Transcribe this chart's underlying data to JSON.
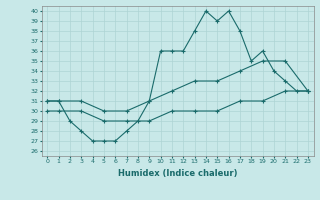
{
  "xlabel": "Humidex (Indice chaleur)",
  "bg_color": "#c8e8e8",
  "grid_color": "#aed4d4",
  "line_color": "#1a6b6b",
  "spine_color": "#888888",
  "xlim": [
    -0.5,
    23.5
  ],
  "ylim": [
    25.5,
    40.5
  ],
  "xticks": [
    0,
    1,
    2,
    3,
    4,
    5,
    6,
    7,
    8,
    9,
    10,
    11,
    12,
    13,
    14,
    15,
    16,
    17,
    18,
    19,
    20,
    21,
    22,
    23
  ],
  "yticks": [
    26,
    27,
    28,
    29,
    30,
    31,
    32,
    33,
    34,
    35,
    36,
    37,
    38,
    39,
    40
  ],
  "series1_x": [
    0,
    1,
    2,
    3,
    4,
    5,
    6,
    7,
    8,
    9,
    10,
    11,
    12,
    13,
    14,
    15,
    16,
    17,
    18,
    19,
    20,
    21,
    22,
    23
  ],
  "series1_y": [
    31,
    31,
    29,
    28,
    27,
    27,
    27,
    28,
    29,
    31,
    36,
    36,
    36,
    38,
    40,
    39,
    40,
    38,
    35,
    36,
    34,
    33,
    32,
    32
  ],
  "series2_x": [
    0,
    1,
    3,
    5,
    7,
    9,
    11,
    13,
    15,
    17,
    19,
    21,
    23
  ],
  "series2_y": [
    31,
    31,
    31,
    30,
    30,
    31,
    32,
    33,
    33,
    34,
    35,
    35,
    32
  ],
  "series3_x": [
    0,
    1,
    3,
    5,
    7,
    9,
    11,
    13,
    15,
    17,
    19,
    21,
    23
  ],
  "series3_y": [
    30,
    30,
    30,
    29,
    29,
    29,
    30,
    30,
    30,
    31,
    31,
    32,
    32
  ]
}
